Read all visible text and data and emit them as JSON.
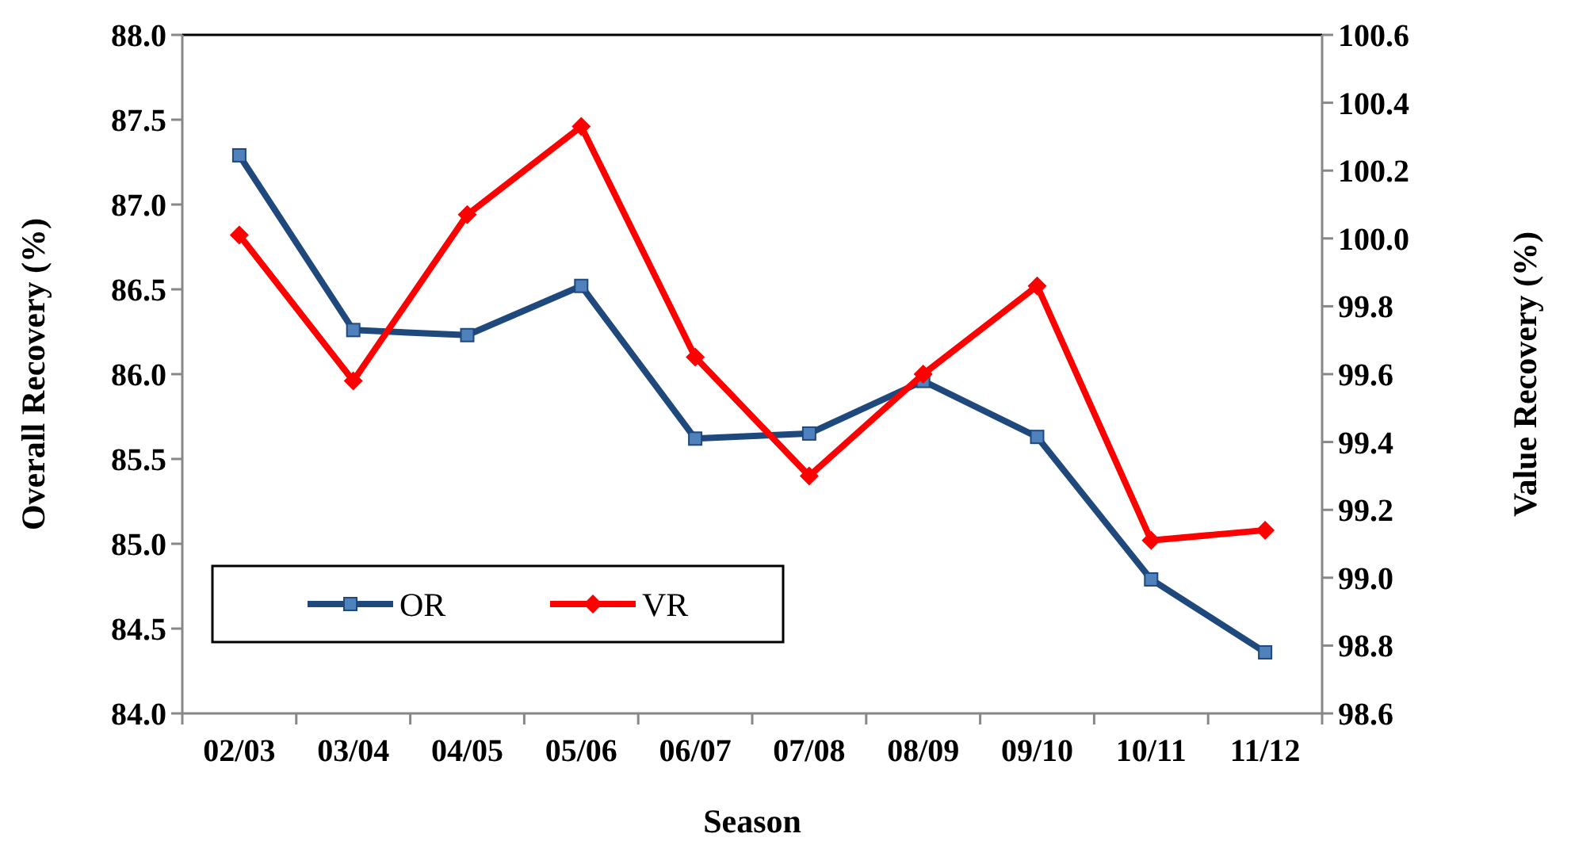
{
  "chart_data": {
    "type": "line",
    "xlabel": "Season",
    "ylabel": "Overall Recovery (%)",
    "y2label": "Value Recovery (%)",
    "categories": [
      "02/03",
      "03/04",
      "04/05",
      "05/06",
      "06/07",
      "07/08",
      "08/09",
      "09/10",
      "10/11",
      "11/12"
    ],
    "series": [
      {
        "name": "OR",
        "color": "#1f497d",
        "marker": "square",
        "values": [
          87.29,
          86.26,
          86.23,
          86.52,
          85.62,
          85.65,
          85.96,
          85.63,
          84.79,
          84.36
        ]
      },
      {
        "name": "VR",
        "color": "#ff0000",
        "marker": "diamond",
        "axis": "y2",
        "values": [
          100.01,
          99.58,
          100.07,
          100.33,
          99.65,
          99.3,
          99.6,
          99.86,
          99.11,
          99.14
        ]
      }
    ],
    "ylim": [
      84.0,
      88.0
    ],
    "yticks": [
      {
        "value": 84,
        "label": "84.0"
      },
      {
        "value": 84.5,
        "label": "84.5"
      },
      {
        "value": 85,
        "label": "85.0"
      },
      {
        "value": 85.5,
        "label": "85.5"
      },
      {
        "value": 86,
        "label": "86.0"
      },
      {
        "value": 86.5,
        "label": "86.5"
      },
      {
        "value": 87,
        "label": "87.0"
      },
      {
        "value": 87.5,
        "label": "87.5"
      },
      {
        "value": 88,
        "label": "88.0"
      }
    ],
    "y2lim": [
      98.6,
      100.6
    ],
    "y2ticks": [
      {
        "value": 98.6,
        "label": "98.6"
      },
      {
        "value": 98.8,
        "label": "98.8"
      },
      {
        "value": 99,
        "label": "99.0"
      },
      {
        "value": 99.2,
        "label": "99.2"
      },
      {
        "value": 99.4,
        "label": "99.4"
      },
      {
        "value": 99.6,
        "label": "99.6"
      },
      {
        "value": 99.8,
        "label": "99.8"
      },
      {
        "value": 100,
        "label": "100.0"
      },
      {
        "value": 100.2,
        "label": "100.2"
      },
      {
        "value": 100.4,
        "label": "100.4"
      },
      {
        "value": 100.6,
        "label": "100.6"
      }
    ],
    "legend": "bottom left",
    "grid": false
  }
}
